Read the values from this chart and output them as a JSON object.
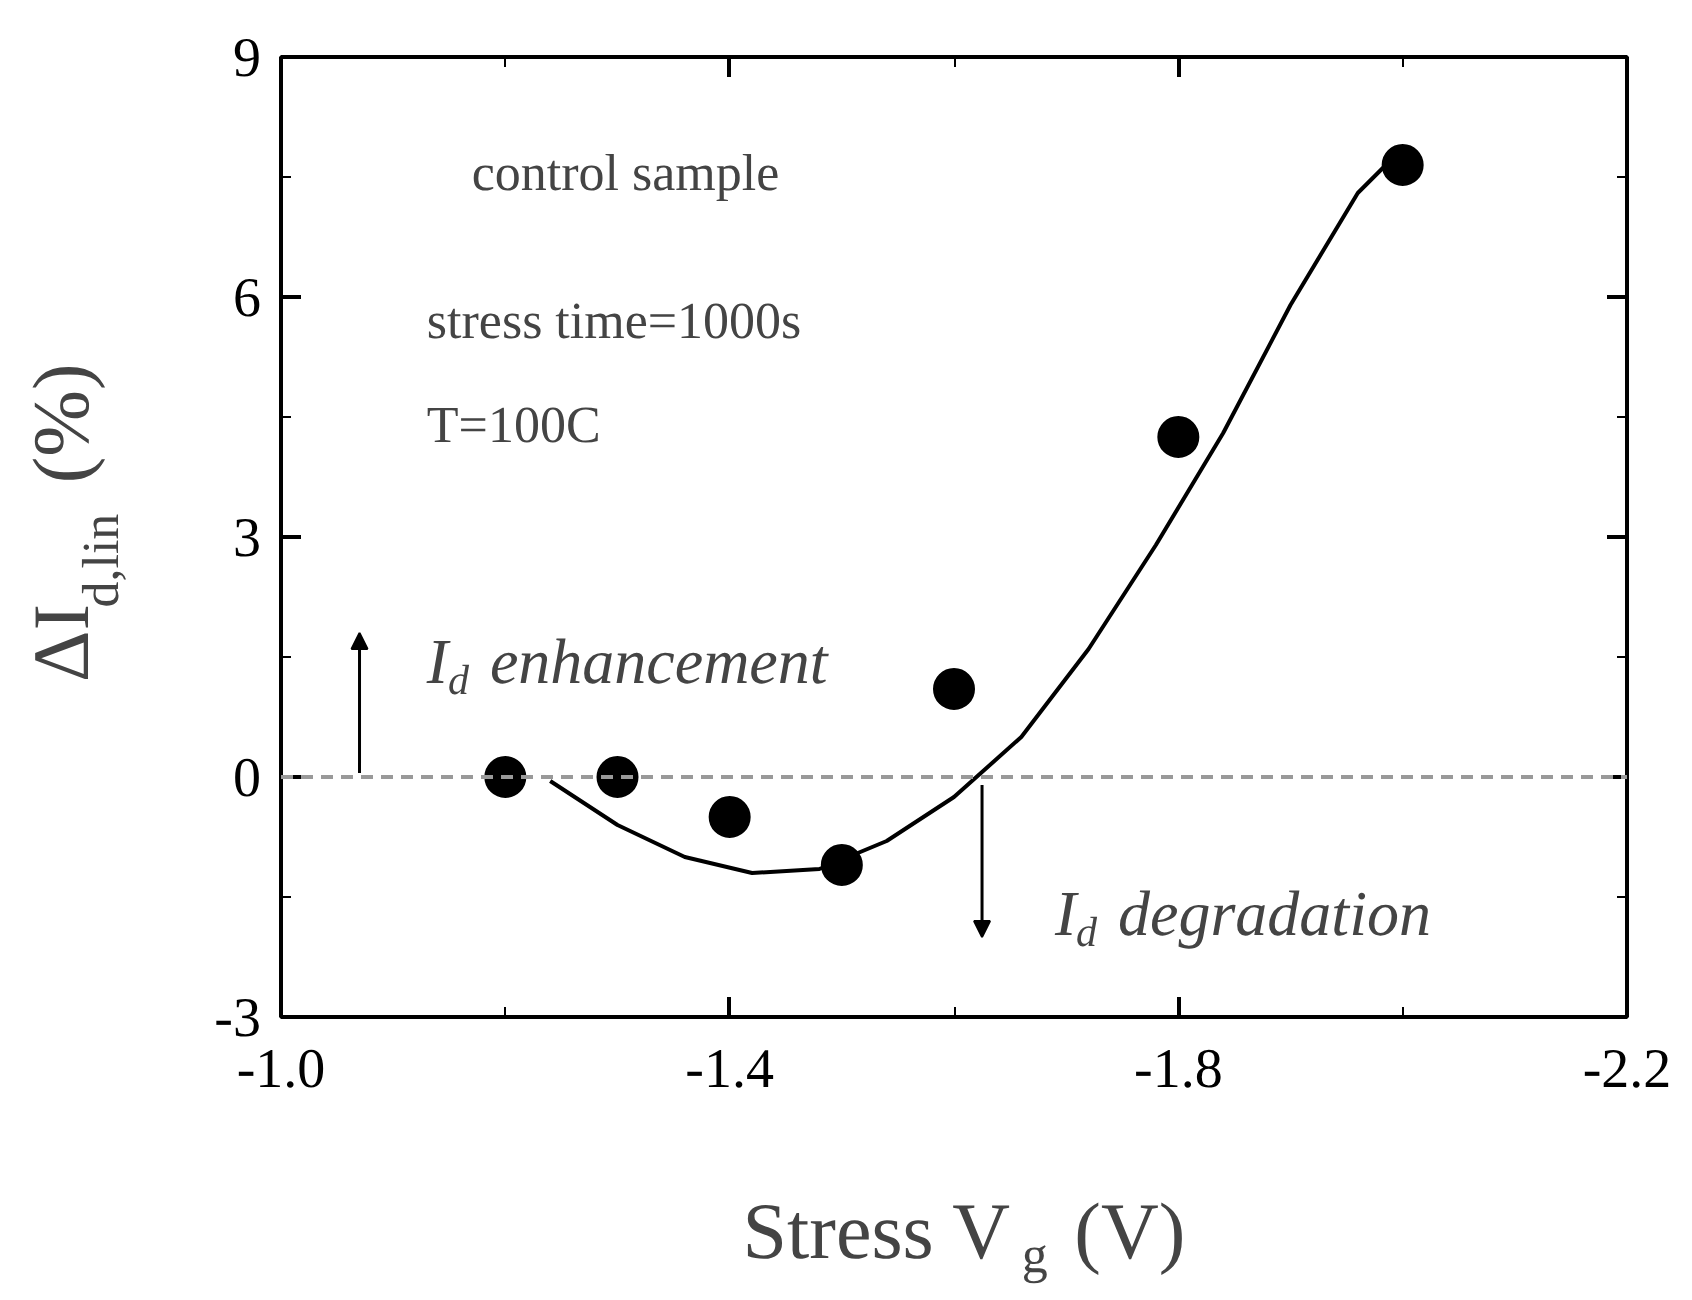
{
  "chart_data": {
    "type": "scatter",
    "xlabel": "Stress V$_{g}$ (V)",
    "ylabel": "ΔI$_{d,lin}$ (%)",
    "xlim": [
      -1.0,
      -2.2
    ],
    "xticks": [
      {
        "value": -1.0,
        "label": "-1.0"
      },
      -1.4,
      -1.8,
      {
        "value": -2.2,
        "label": "-2.2"
      }
    ],
    "ylim": [
      -3,
      9
    ],
    "yticks": [
      -3,
      0,
      3,
      6,
      9
    ],
    "marker": "circle",
    "series": [
      {
        "color": "#000000",
        "x": [
          -1.2,
          -1.3,
          -1.4,
          -1.5,
          -1.6,
          -1.8,
          -2.0
        ],
        "values": [
          0.0,
          0.0,
          -0.5,
          -1.1,
          1.1,
          4.25,
          7.65
        ]
      },
      {
        "type": "line",
        "marker": "none",
        "color": "#000000",
        "x": [
          -1.24,
          -1.3,
          -1.36,
          -1.42,
          -1.48,
          -1.54,
          -1.6,
          -1.66,
          -1.72,
          -1.78,
          -1.84,
          -1.9,
          -1.96,
          -1.985
        ],
        "values": [
          -0.05,
          -0.6,
          -1.0,
          -1.2,
          -1.15,
          -0.8,
          -0.25,
          0.5,
          1.6,
          2.9,
          4.3,
          5.9,
          7.3,
          7.65
        ]
      }
    ],
    "ref_lines": [
      {
        "axis": "y",
        "value": 0,
        "color": "#999999",
        "line_style": "dashed"
      }
    ],
    "annotations": [
      "control sample",
      "stress time=1000s",
      "T=100C",
      "I$_{d}$ enhancement",
      "I$_{d}$ degradation"
    ]
  }
}
